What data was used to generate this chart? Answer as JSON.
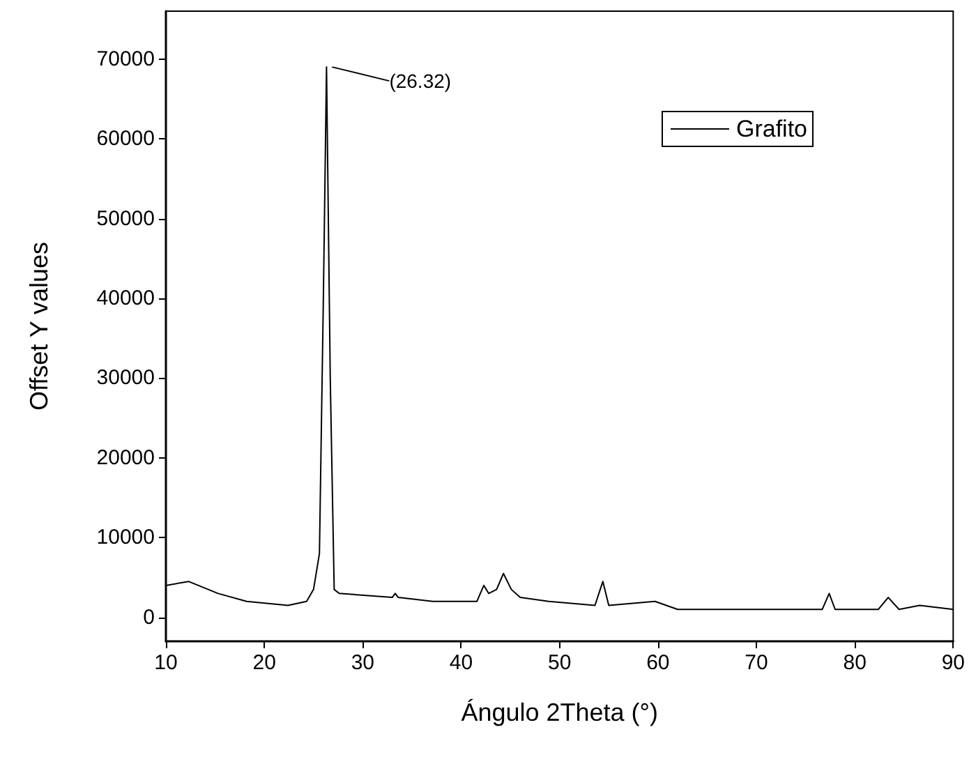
{
  "chart_data": {
    "type": "line",
    "xlabel": "Ángulo 2Theta (°)",
    "ylabel": "Offset Y values",
    "x": [
      10,
      12.3,
      15.3,
      18.2,
      22.4,
      24.3,
      25.0,
      25.6,
      26.0,
      26.32,
      26.7,
      27.1,
      27.6,
      33.0,
      33.3,
      33.6,
      37.1,
      41.6,
      42.3,
      42.8,
      43.6,
      44.3,
      45.1,
      46.0,
      48.9,
      53.6,
      54.4,
      55.0,
      59.7,
      62.0,
      76.7,
      77.4,
      78.0,
      82.4,
      83.4,
      84.5,
      86.6,
      90
    ],
    "series": [
      {
        "name": "Grafito",
        "color": "#000000",
        "values": [
          4000,
          4500,
          3000,
          2000,
          1500,
          2000,
          3500,
          8000,
          40000,
          69000,
          30000,
          3500,
          3000,
          2500,
          3000,
          2500,
          2000,
          2000,
          4000,
          3000,
          3500,
          5500,
          3500,
          2500,
          2000,
          1500,
          4500,
          1500,
          2000,
          1000,
          1000,
          3000,
          1000,
          1000,
          2500,
          1000,
          1500,
          1000
        ]
      }
    ],
    "xlim": [
      10,
      90
    ],
    "xticks": [
      10,
      20,
      30,
      40,
      50,
      60,
      70,
      80,
      90
    ],
    "ylim": [
      -3000,
      76000
    ],
    "yticks": [
      0,
      10000,
      20000,
      30000,
      40000,
      50000,
      60000,
      70000
    ],
    "annotations": [
      {
        "text": "(26.32)",
        "x": 26.32,
        "y": 69000
      }
    ],
    "legend": "top right",
    "grid": false,
    "marker": "none",
    "line_style": "solid"
  }
}
